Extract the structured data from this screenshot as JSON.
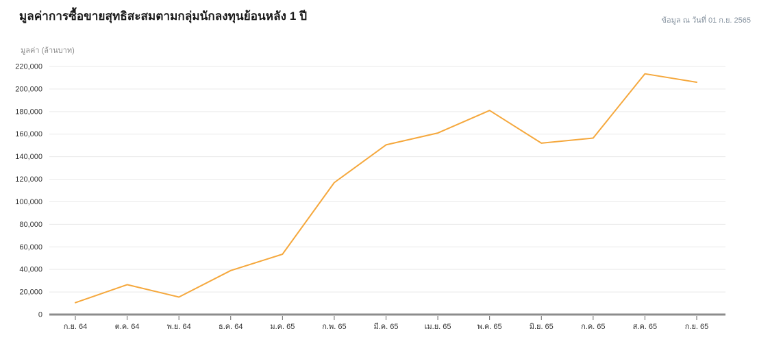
{
  "header": {
    "title": "มูลค่าการซื้อขายสุทธิสะสมตามกลุ่มนักลงทุนย้อนหลัง 1 ปี",
    "as_of": "ข้อมูล ณ วันที่ 01 ก.ย. 2565"
  },
  "chart_data": {
    "type": "line",
    "title": "มูลค่าการซื้อขายสุทธิสะสมตามกลุ่มนักลงทุนย้อนหลัง 1 ปี",
    "unit_label": "มูลค่า (ล้านบาท)",
    "categories": [
      "ก.ย. 64",
      "ต.ค. 64",
      "พ.ย. 64",
      "ธ.ค. 64",
      "ม.ค. 65",
      "ก.พ. 65",
      "มี.ค. 65",
      "เม.ย. 65",
      "พ.ค. 65",
      "มิ.ย. 65",
      "ก.ค. 65",
      "ส.ค. 65",
      "ก.ย. 65"
    ],
    "values": [
      10500,
      26500,
      15500,
      39000,
      53500,
      117000,
      150500,
      161000,
      181000,
      152000,
      156500,
      213500,
      206000
    ],
    "ylim": [
      0,
      220000
    ],
    "ytick_step": 20000,
    "grid": true,
    "legend": "none",
    "colors": {
      "line": "#f5a83d",
      "axis": "#8c8c8c",
      "tick": "#666666",
      "gridline": "#e9e9e9",
      "tick_label": "#333333"
    }
  }
}
